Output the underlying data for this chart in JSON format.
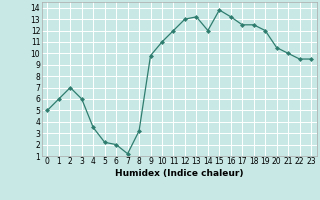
{
  "x": [
    0,
    1,
    2,
    3,
    4,
    5,
    6,
    7,
    8,
    9,
    10,
    11,
    12,
    13,
    14,
    15,
    16,
    17,
    18,
    19,
    20,
    21,
    22,
    23
  ],
  "y": [
    5.0,
    6.0,
    7.0,
    6.0,
    3.5,
    2.2,
    2.0,
    1.2,
    3.2,
    9.8,
    11.0,
    12.0,
    13.0,
    13.2,
    12.0,
    13.8,
    13.2,
    12.5,
    12.5,
    12.0,
    10.5,
    10.0,
    9.5,
    9.5
  ],
  "line_color": "#2e7d6e",
  "marker": "D",
  "marker_size": 2,
  "bg_color": "#c8e8e5",
  "grid_color": "#ffffff",
  "xlabel": "Humidex (Indice chaleur)",
  "xlim": [
    -0.5,
    23.5
  ],
  "ylim": [
    1,
    14.5
  ],
  "xticks": [
    0,
    1,
    2,
    3,
    4,
    5,
    6,
    7,
    8,
    9,
    10,
    11,
    12,
    13,
    14,
    15,
    16,
    17,
    18,
    19,
    20,
    21,
    22,
    23
  ],
  "yticks": [
    1,
    2,
    3,
    4,
    5,
    6,
    7,
    8,
    9,
    10,
    11,
    12,
    13,
    14
  ],
  "tick_fontsize": 5.5,
  "label_fontsize": 6.5
}
